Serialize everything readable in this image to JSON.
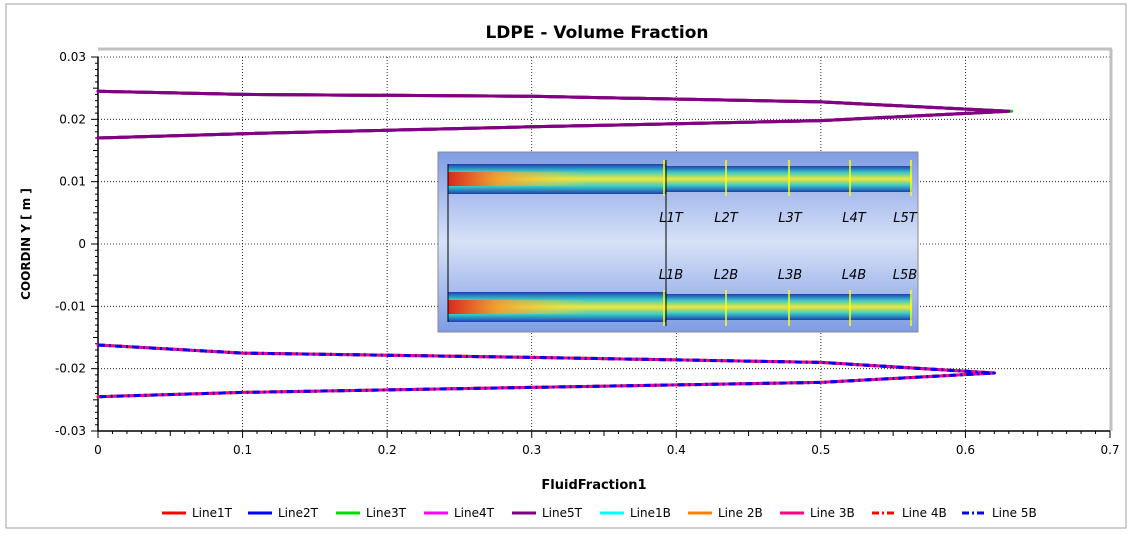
{
  "chart_data": {
    "type": "line",
    "title": "LDPE - Volume Fraction",
    "xlabel": "FluidFraction1",
    "ylabel": "COORDIN Y [ m ]",
    "xlim": [
      0,
      0.7
    ],
    "ylim": [
      -0.03,
      0.03
    ],
    "xticks": [
      0,
      0.1,
      0.2,
      0.3,
      0.4,
      0.5,
      0.6,
      0.7
    ],
    "xtick_labels": [
      "0",
      "0.1",
      "0.2",
      "0.3",
      "0.4",
      "0.5",
      "0.6",
      "0.7"
    ],
    "yticks": [
      0.03,
      0.02,
      0.01,
      0,
      -0.01,
      -0.02,
      -0.03
    ],
    "ytick_labels": [
      "0.03",
      "0.02",
      "0.01",
      "0",
      "-0.01",
      "-0.02",
      "-0.03"
    ],
    "grid": true,
    "legend_position": "bottom",
    "series": [
      {
        "name": "Line1T",
        "color": "#ff0000",
        "dash": "solid",
        "x": [
          0,
          0.1,
          0.3,
          0.5,
          0.63,
          0.5,
          0.3,
          0.1,
          0
        ],
        "y": [
          0.0245,
          0.024,
          0.0237,
          0.0228,
          0.0213,
          0.0198,
          0.0188,
          0.0177,
          0.017
        ]
      },
      {
        "name": "Line2T",
        "color": "#0000ff",
        "dash": "solid",
        "x": [
          0,
          0.1,
          0.3,
          0.5,
          0.63,
          0.5,
          0.3,
          0.1,
          0
        ],
        "y": [
          0.0245,
          0.024,
          0.0237,
          0.0228,
          0.0213,
          0.0198,
          0.0188,
          0.0177,
          0.017
        ]
      },
      {
        "name": "Line3T",
        "color": "#00dd00",
        "dash": "solid",
        "x": [
          0,
          0.1,
          0.3,
          0.5,
          0.632,
          0.5,
          0.3,
          0.1,
          0
        ],
        "y": [
          0.0245,
          0.024,
          0.0237,
          0.0228,
          0.0213,
          0.0198,
          0.0188,
          0.0177,
          0.017
        ]
      },
      {
        "name": "Line4T",
        "color": "#ff00ff",
        "dash": "solid",
        "x": [
          0,
          0.1,
          0.3,
          0.5,
          0.63,
          0.5,
          0.3,
          0.1,
          0
        ],
        "y": [
          0.0245,
          0.024,
          0.0237,
          0.0228,
          0.0213,
          0.0198,
          0.0188,
          0.0177,
          0.017
        ]
      },
      {
        "name": "Line5T",
        "color": "#800080",
        "dash": "solid",
        "x": [
          0,
          0.1,
          0.3,
          0.5,
          0.63,
          0.5,
          0.3,
          0.1,
          0
        ],
        "y": [
          0.0245,
          0.024,
          0.0237,
          0.0228,
          0.0213,
          0.0198,
          0.0188,
          0.0177,
          0.017
        ]
      },
      {
        "name": "Line1B",
        "color": "#00ffff",
        "dash": "solid",
        "x": [
          0,
          0.1,
          0.3,
          0.5,
          0.62,
          0.5,
          0.3,
          0.1,
          0
        ],
        "y": [
          -0.0162,
          -0.0175,
          -0.0182,
          -0.019,
          -0.0207,
          -0.0222,
          -0.023,
          -0.0238,
          -0.0245
        ]
      },
      {
        "name": "Line 2B",
        "color": "#ff8000",
        "dash": "solid",
        "x": [
          0,
          0.1,
          0.3,
          0.5,
          0.62,
          0.5,
          0.3,
          0.1,
          0
        ],
        "y": [
          -0.0162,
          -0.0175,
          -0.0182,
          -0.019,
          -0.0207,
          -0.0222,
          -0.023,
          -0.0238,
          -0.0245
        ]
      },
      {
        "name": "Line 3B",
        "color": "#ff0080",
        "dash": "solid",
        "x": [
          0,
          0.1,
          0.3,
          0.5,
          0.62,
          0.5,
          0.3,
          0.1,
          0
        ],
        "y": [
          -0.0162,
          -0.0175,
          -0.0182,
          -0.019,
          -0.0207,
          -0.0222,
          -0.023,
          -0.0238,
          -0.0245
        ]
      },
      {
        "name": "Line 4B",
        "color": "#ff0000",
        "dash": "dashdot",
        "x": [
          0,
          0.1,
          0.3,
          0.5,
          0.62,
          0.5,
          0.3,
          0.1,
          0
        ],
        "y": [
          -0.0162,
          -0.0175,
          -0.0182,
          -0.019,
          -0.0207,
          -0.0222,
          -0.023,
          -0.0238,
          -0.0245
        ]
      },
      {
        "name": "Line 5B",
        "color": "#0000ff",
        "dash": "dashdot",
        "x": [
          0,
          0.1,
          0.3,
          0.5,
          0.62,
          0.5,
          0.3,
          0.1,
          0
        ],
        "y": [
          -0.0162,
          -0.0175,
          -0.0182,
          -0.019,
          -0.0207,
          -0.0222,
          -0.023,
          -0.0238,
          -0.0245
        ]
      }
    ],
    "inset": {
      "top_labels": [
        "L1T",
        "L2T",
        "L3T",
        "L4T",
        "L5T"
      ],
      "bottom_labels": [
        "L1B",
        "L2B",
        "L3B",
        "L4B",
        "L5B"
      ]
    }
  }
}
